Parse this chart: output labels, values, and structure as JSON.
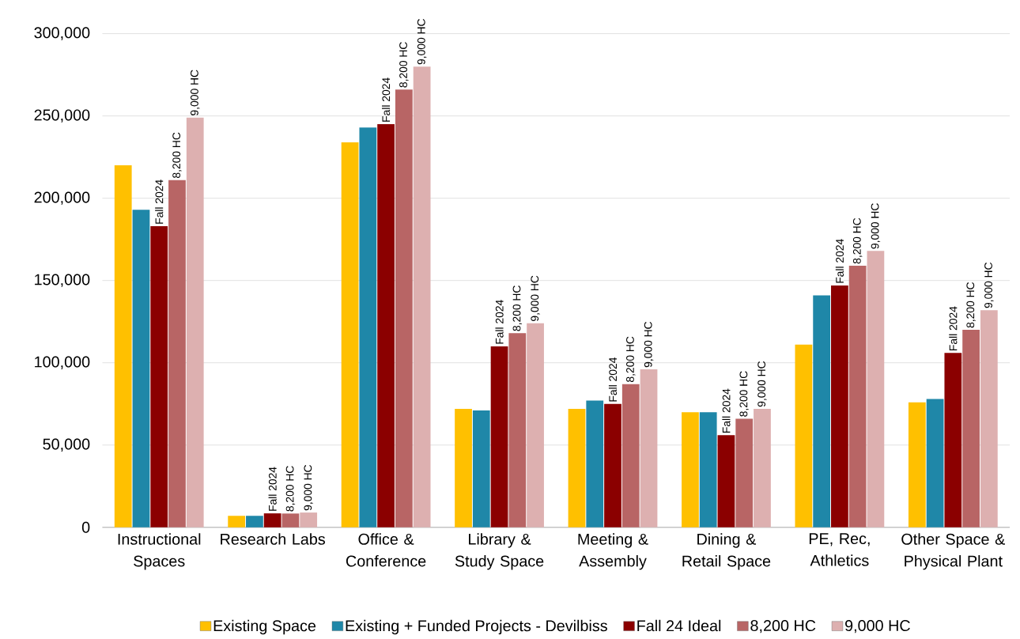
{
  "chart_data": {
    "type": "bar",
    "categories": [
      "Instructional Spaces",
      "Research Labs",
      "Office & Conference",
      "Library & Study Space",
      "Meeting & Assembly",
      "Dining & Retail Space",
      "PE, Rec, Athletics",
      "Other Space & Physical Plant"
    ],
    "series": [
      {
        "name": "Existing Space",
        "color": "#ffc000",
        "values": [
          220000,
          7000,
          234000,
          72000,
          72000,
          70000,
          111000,
          76000
        ]
      },
      {
        "name": "Existing + Funded Projects - Devilbiss",
        "color": "#1f87a8",
        "values": [
          193000,
          7000,
          243000,
          71000,
          77000,
          70000,
          141000,
          78000
        ]
      },
      {
        "name": "Fall 24 Ideal",
        "color": "#8b0000",
        "values": [
          183000,
          8500,
          245000,
          110000,
          75000,
          56000,
          147000,
          106000
        ]
      },
      {
        "name": "8,200 HC",
        "color": "#b86565",
        "values": [
          211000,
          8400,
          266000,
          118000,
          87000,
          66000,
          159000,
          120000
        ]
      },
      {
        "name": "9,000 HC",
        "color": "#ddb0b0",
        "values": [
          249000,
          9000,
          280000,
          124000,
          96000,
          72000,
          168000,
          132000
        ]
      }
    ],
    "annotations": [
      {
        "text": "Fall 2024",
        "x": "Instructional Spaces",
        "y": 183000
      },
      "8,200 HC",
      "9,000 HC",
      {
        "text": "Fall 2024",
        "x": "Research Labs",
        "y": 8500
      },
      "8,200 HC",
      "9,000 HC",
      {
        "text": "Fall 2024",
        "x": "Office & Conference",
        "y": 245000
      },
      "8,200 HC",
      "9,000 HC",
      {
        "text": "Fall 2024",
        "x": "Library & Study Space",
        "y": 110000
      },
      "8,200 HC",
      "9,000 HC",
      {
        "text": "Fall 2024",
        "x": "Meeting & Assembly",
        "y": 75000
      },
      "8,200 HC",
      "9,000 HC",
      {
        "text": "Fall 2024",
        "x": "Dining & Retail Space",
        "y": 56000
      },
      "8,200 HC",
      "9,000 HC",
      {
        "text": "Fall 2024",
        "x": "PE, Rec, Athletics",
        "y": 147000
      },
      "8,200 HC",
      "9,000 HC",
      {
        "text": "Fall 2024",
        "x": "Other Space & Physical Plant",
        "y": 106000
      },
      "8,200 HC",
      "9,000 HC"
    ],
    "ylim": [
      0,
      300000
    ],
    "yticks": [
      {
        "value": 0,
        "label": "0"
      },
      {
        "value": 50000,
        "label": "50,000"
      },
      {
        "value": 100000,
        "label": "100,000"
      },
      {
        "value": 150000,
        "label": "150,000"
      },
      {
        "value": 200000,
        "label": "200,000"
      },
      {
        "value": 250000,
        "label": "250,000"
      },
      {
        "value": 300000,
        "label": "300,000"
      }
    ],
    "grid": "y",
    "legend": "bottom"
  }
}
